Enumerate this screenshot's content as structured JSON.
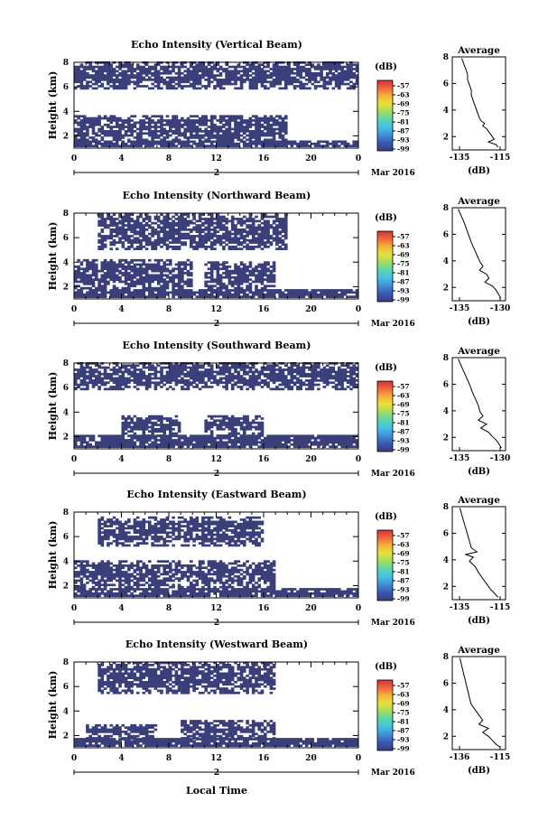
{
  "figure": {
    "x_axis_label": "Local Time",
    "date_label": "Mar 2016",
    "day_label": "2",
    "colors": {
      "echo": "#3a3f7a",
      "background": "#ffffff",
      "axis": "#000000",
      "colorbar": [
        "#3a3f7a",
        "#3b55b6",
        "#3f8fd3",
        "#44c0e6",
        "#58d5b0",
        "#9fdc60",
        "#e6e33a",
        "#f5b43a",
        "#f0683a",
        "#d7303a"
      ]
    }
  },
  "chart_data": [
    {
      "type": "heatmap",
      "title": "Echo Intensity (Vertical Beam)",
      "xlabel": "Local Time",
      "ylabel": "Height (km)",
      "xlim": [
        0,
        24
      ],
      "ylim": [
        1,
        8
      ],
      "xticks": [
        "0",
        "4",
        "8",
        "12",
        "16",
        "20",
        "0"
      ],
      "yticks": [
        "2",
        "4",
        "6",
        "8"
      ],
      "colorbar": {
        "unit": "(dB)",
        "ticks": [
          "-57",
          "-63",
          "-69",
          "-75",
          "-81",
          "-87",
          "-93",
          "-99"
        ]
      },
      "echo_layers_km": [
        {
          "from_hour": 0,
          "to_hour": 24,
          "bottom": 1.1,
          "top": 1.6
        },
        {
          "from_hour": 0,
          "to_hour": 18,
          "bottom": 1.6,
          "top": 3.6
        },
        {
          "from_hour": 0,
          "to_hour": 24,
          "bottom": 5.8,
          "top": 7.9
        }
      ],
      "profile": {
        "title": "Average",
        "xlabel": "(dB)",
        "xticks": [
          "-135",
          "-115"
        ],
        "xlim": [
          -140,
          -112
        ],
        "ylim": [
          1,
          8
        ],
        "yticks": [
          "2",
          "4",
          "6",
          "8"
        ],
        "points": [
          [
            -135,
            7.9
          ],
          [
            -134,
            7.5
          ],
          [
            -133,
            7.1
          ],
          [
            -132,
            6.7
          ],
          [
            -132,
            6.3
          ],
          [
            -131,
            5.9
          ],
          [
            -130,
            5.5
          ],
          [
            -130,
            5.1
          ],
          [
            -129,
            4.7
          ],
          [
            -128,
            4.3
          ],
          [
            -127,
            3.9
          ],
          [
            -126,
            3.5
          ],
          [
            -125,
            3.2
          ],
          [
            -123,
            3.0
          ],
          [
            -124,
            2.8
          ],
          [
            -122,
            2.6
          ],
          [
            -121,
            2.4
          ],
          [
            -120,
            2.2
          ],
          [
            -119,
            2.0
          ],
          [
            -118,
            1.8
          ],
          [
            -121,
            1.6
          ],
          [
            -117,
            1.4
          ],
          [
            -116,
            1.2
          ]
        ]
      }
    },
    {
      "type": "heatmap",
      "title": "Echo Intensity (Northward Beam)",
      "xlabel": "Local Time",
      "ylabel": "Height (km)",
      "xlim": [
        0,
        24
      ],
      "ylim": [
        1,
        8
      ],
      "xticks": [
        "0",
        "4",
        "8",
        "12",
        "16",
        "20",
        "0"
      ],
      "yticks": [
        "2",
        "4",
        "6",
        "8"
      ],
      "colorbar": {
        "unit": "(dB)",
        "ticks": [
          "-57",
          "-63",
          "-69",
          "-75",
          "-81",
          "-87",
          "-93",
          "-99"
        ]
      },
      "echo_layers_km": [
        {
          "from_hour": 0,
          "to_hour": 24,
          "bottom": 1.1,
          "top": 1.8
        },
        {
          "from_hour": 0,
          "to_hour": 10,
          "bottom": 1.8,
          "top": 4.1
        },
        {
          "from_hour": 11,
          "to_hour": 17,
          "bottom": 1.8,
          "top": 4.0
        },
        {
          "from_hour": 2,
          "to_hour": 18,
          "bottom": 5.0,
          "top": 7.8
        }
      ],
      "profile": {
        "title": "Average",
        "xlabel": "(dB)",
        "xticks": [
          "-135",
          "-130"
        ],
        "xlim": [
          -137,
          -128
        ],
        "ylim": [
          1,
          8
        ],
        "yticks": [
          "2",
          "4",
          "6",
          "8"
        ],
        "points": [
          [
            -136,
            7.9
          ],
          [
            -135.5,
            7.4
          ],
          [
            -135,
            6.9
          ],
          [
            -134.6,
            6.4
          ],
          [
            -134.2,
            5.9
          ],
          [
            -133.8,
            5.4
          ],
          [
            -133.3,
            4.9
          ],
          [
            -132.8,
            4.4
          ],
          [
            -132.3,
            3.9
          ],
          [
            -131.8,
            3.6
          ],
          [
            -132.4,
            3.3
          ],
          [
            -131.2,
            3.0
          ],
          [
            -130.8,
            2.7
          ],
          [
            -131.5,
            2.4
          ],
          [
            -130.2,
            2.1
          ],
          [
            -129.6,
            1.8
          ],
          [
            -129.2,
            1.5
          ],
          [
            -128.8,
            1.2
          ]
        ]
      }
    },
    {
      "type": "heatmap",
      "title": "Echo Intensity (Southward Beam)",
      "xlabel": "Local Time",
      "ylabel": "Height (km)",
      "xlim": [
        0,
        24
      ],
      "ylim": [
        1,
        8
      ],
      "xticks": [
        "0",
        "4",
        "8",
        "12",
        "16",
        "20",
        "0"
      ],
      "yticks": [
        "2",
        "4",
        "6",
        "8"
      ],
      "colorbar": {
        "unit": "(dB)",
        "ticks": [
          "-57",
          "-63",
          "-69",
          "-75",
          "-81",
          "-87",
          "-93",
          "-99"
        ]
      },
      "echo_layers_km": [
        {
          "from_hour": 0,
          "to_hour": 24,
          "bottom": 1.1,
          "top": 2.0
        },
        {
          "from_hour": 4,
          "to_hour": 9,
          "bottom": 2.0,
          "top": 3.6
        },
        {
          "from_hour": 11,
          "to_hour": 16,
          "bottom": 2.0,
          "top": 3.7
        },
        {
          "from_hour": 0,
          "to_hour": 24,
          "bottom": 5.8,
          "top": 7.9
        }
      ],
      "profile": {
        "title": "Average",
        "xlabel": "(dB)",
        "xticks": [
          "-135",
          "-130"
        ],
        "xlim": [
          -137,
          -128
        ],
        "ylim": [
          1,
          8
        ],
        "yticks": [
          "2",
          "4",
          "6",
          "8"
        ],
        "points": [
          [
            -136,
            7.9
          ],
          [
            -135.5,
            7.4
          ],
          [
            -135,
            6.9
          ],
          [
            -134.5,
            6.4
          ],
          [
            -134,
            5.9
          ],
          [
            -133.6,
            5.4
          ],
          [
            -133.1,
            4.9
          ],
          [
            -132.6,
            4.4
          ],
          [
            -132.3,
            3.9
          ],
          [
            -131.8,
            3.6
          ],
          [
            -132.6,
            3.3
          ],
          [
            -131.2,
            3.0
          ],
          [
            -132.2,
            2.7
          ],
          [
            -130.9,
            2.4
          ],
          [
            -130.3,
            2.1
          ],
          [
            -129.6,
            1.8
          ],
          [
            -129.1,
            1.5
          ],
          [
            -128.7,
            1.2
          ]
        ]
      }
    },
    {
      "type": "heatmap",
      "title": "Echo Intensity (Eastward Beam)",
      "xlabel": "Local Time",
      "ylabel": "Height (km)",
      "xlim": [
        0,
        24
      ],
      "ylim": [
        1,
        8
      ],
      "xticks": [
        "0",
        "4",
        "8",
        "12",
        "16",
        "20",
        "0"
      ],
      "yticks": [
        "2",
        "4",
        "6",
        "8"
      ],
      "colorbar": {
        "unit": "(dB)",
        "ticks": [
          "-57",
          "-63",
          "-69",
          "-75",
          "-81",
          "-87",
          "-93",
          "-99"
        ]
      },
      "echo_layers_km": [
        {
          "from_hour": 0,
          "to_hour": 24,
          "bottom": 1.1,
          "top": 1.8
        },
        {
          "from_hour": 0,
          "to_hour": 17,
          "bottom": 1.8,
          "top": 4.0
        },
        {
          "from_hour": 2,
          "to_hour": 16,
          "bottom": 5.2,
          "top": 7.6
        }
      ],
      "profile": {
        "title": "Average",
        "xlabel": "(dB)",
        "xticks": [
          "-135",
          "-115"
        ],
        "xlim": [
          -140,
          -112
        ],
        "ylim": [
          1,
          8
        ],
        "yticks": [
          "2",
          "4",
          "6",
          "8"
        ],
        "points": [
          [
            -136,
            7.9
          ],
          [
            -135,
            7.4
          ],
          [
            -134,
            6.9
          ],
          [
            -133,
            6.4
          ],
          [
            -132,
            5.9
          ],
          [
            -131,
            5.4
          ],
          [
            -130,
            4.9
          ],
          [
            -127,
            4.6
          ],
          [
            -133,
            4.4
          ],
          [
            -129,
            4.2
          ],
          [
            -131,
            3.9
          ],
          [
            -128,
            3.5
          ],
          [
            -126,
            3.0
          ],
          [
            -124,
            2.6
          ],
          [
            -122,
            2.2
          ],
          [
            -120,
            1.8
          ],
          [
            -118,
            1.5
          ],
          [
            -116,
            1.2
          ]
        ]
      }
    },
    {
      "type": "heatmap",
      "title": "Echo Intensity (Westward Beam)",
      "xlabel": "Local Time",
      "ylabel": "Height (km)",
      "xlim": [
        0,
        24
      ],
      "ylim": [
        1,
        8
      ],
      "xticks": [
        "0",
        "4",
        "8",
        "12",
        "16",
        "20",
        "0"
      ],
      "yticks": [
        "2",
        "4",
        "6",
        "8"
      ],
      "colorbar": {
        "unit": "(dB)",
        "ticks": [
          "-57",
          "-63",
          "-69",
          "-75",
          "-81",
          "-87",
          "-93",
          "-99"
        ]
      },
      "echo_layers_km": [
        {
          "from_hour": 0,
          "to_hour": 24,
          "bottom": 1.1,
          "top": 1.7
        },
        {
          "from_hour": 1,
          "to_hour": 7,
          "bottom": 1.7,
          "top": 2.8
        },
        {
          "from_hour": 9,
          "to_hour": 17,
          "bottom": 1.7,
          "top": 3.2
        },
        {
          "from_hour": 2,
          "to_hour": 17,
          "bottom": 5.4,
          "top": 7.9
        }
      ],
      "profile": {
        "title": "Average",
        "xlabel": "(dB)",
        "xticks": [
          "-136",
          "-115"
        ],
        "xlim": [
          -140,
          -112
        ],
        "ylim": [
          1,
          8
        ],
        "yticks": [
          "2",
          "4",
          "6",
          "8"
        ],
        "points": [
          [
            -136,
            7.9
          ],
          [
            -135,
            7.3
          ],
          [
            -134,
            6.7
          ],
          [
            -133,
            6.1
          ],
          [
            -132,
            5.5
          ],
          [
            -131,
            4.9
          ],
          [
            -130,
            4.4
          ],
          [
            -128,
            4.0
          ],
          [
            -126,
            3.6
          ],
          [
            -124,
            3.2
          ],
          [
            -126,
            2.9
          ],
          [
            -121,
            2.6
          ],
          [
            -124,
            2.3
          ],
          [
            -121,
            2.0
          ],
          [
            -119,
            1.7
          ],
          [
            -117,
            1.4
          ],
          [
            -115,
            1.2
          ]
        ]
      }
    }
  ]
}
